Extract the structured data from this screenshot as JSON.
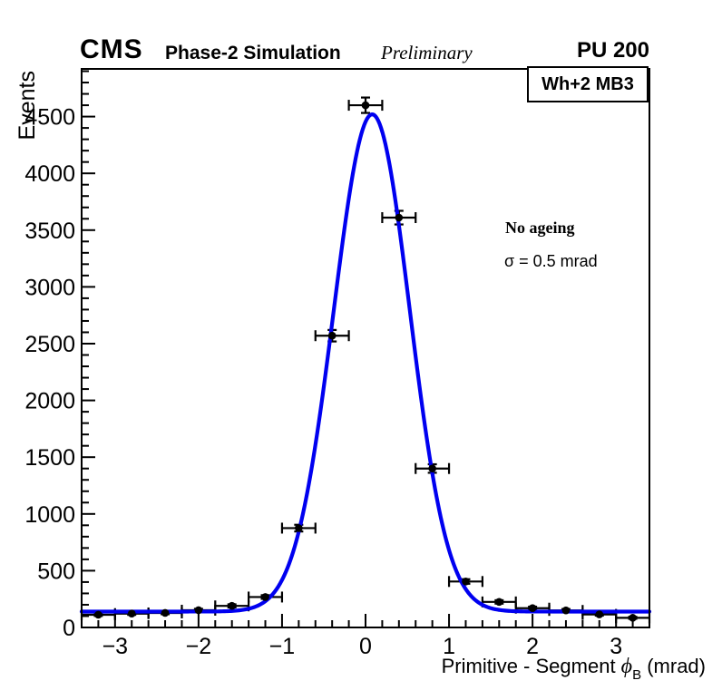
{
  "header": {
    "experiment": "CMS",
    "simulation": "Phase-2 Simulation",
    "preliminary": "Preliminary",
    "pileup": "PU 200"
  },
  "legend": {
    "title": "Wh+2 MB3"
  },
  "annotations": {
    "ageing": "No ageing",
    "sigma": "σ = 0.5 mrad"
  },
  "axes": {
    "x_title_main": "Primitive - Segment ",
    "x_title_phi": "ϕ",
    "x_title_sub": "B",
    "x_title_unit": " (mrad)",
    "y_title": "Events"
  },
  "chart_data": {
    "type": "scatter",
    "title": "",
    "xlabel": "Primitive - Segment phi_B (mrad)",
    "ylabel": "Events",
    "xlim": [
      -3.4,
      3.4
    ],
    "ylim": [
      0,
      4920
    ],
    "x_major_step": 1,
    "x_minor_step": 0.2,
    "y_major_step": 500,
    "y_minor_step": 100,
    "x_tick_labels": [
      -3,
      -2,
      -1,
      0,
      1,
      2,
      3
    ],
    "y_tick_labels": [
      0,
      500,
      1000,
      1500,
      2000,
      2500,
      3000,
      3500,
      4000,
      4500
    ],
    "grid": false,
    "bin_half_width": 0.2,
    "x": [
      -3.2,
      -2.8,
      -2.4,
      -2.0,
      -1.6,
      -1.2,
      -0.8,
      -0.4,
      0.0,
      0.4,
      0.8,
      1.2,
      1.6,
      2.0,
      2.4,
      2.8,
      3.2
    ],
    "y": [
      112,
      122,
      128,
      152,
      190,
      268,
      875,
      2570,
      4600,
      3610,
      1400,
      405,
      225,
      170,
      150,
      115,
      85
    ],
    "error_model": "sqrt",
    "fit_curve": {
      "shape": "gaussian_plus_baseline",
      "baseline": 140,
      "amplitude": 4380,
      "mean": 0.08,
      "sigma_left": 0.46,
      "sigma_right": 0.45,
      "sigma_label_mrad": 0.5
    },
    "colors": {
      "curve": "#0000f0",
      "marker": "#000000",
      "frame": "#000000"
    }
  }
}
